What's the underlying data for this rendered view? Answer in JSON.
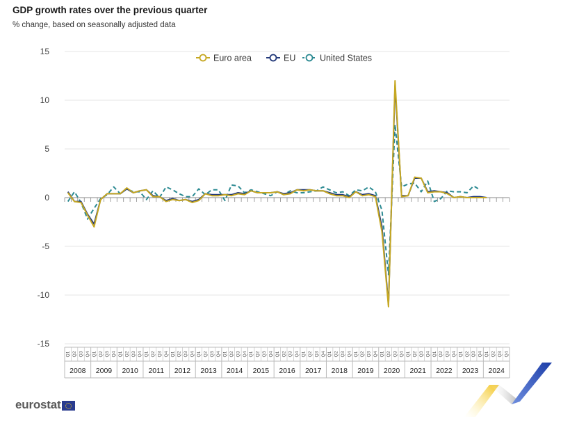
{
  "header": {
    "title": "GDP growth rates over the previous quarter",
    "subtitle": "% change, based on seasonally adjusted data"
  },
  "logo": {
    "text": "eurostat"
  },
  "colors": {
    "euro_area": "#c6a823",
    "eu": "#243a7a",
    "united_states": "#2c8a92",
    "grid": "#e6e6e6",
    "axis": "#888888"
  },
  "chart_data": {
    "type": "line",
    "title": "GDP growth rates over the previous quarter",
    "subtitle": "% change, based on seasonally adjusted data",
    "xlabel": "",
    "ylabel": "",
    "ylim": [
      -15,
      15
    ],
    "yticks": [
      15,
      10,
      5,
      0,
      -5,
      -10,
      -15
    ],
    "grid": true,
    "legend_position": "top-center",
    "years": [
      "2008",
      "2009",
      "2010",
      "2011",
      "2012",
      "2013",
      "2014",
      "2015",
      "2016",
      "2017",
      "2018",
      "2019",
      "2020",
      "2021",
      "2022",
      "2023",
      "2024"
    ],
    "quarter_labels": [
      "Q1",
      "Q2",
      "Q3",
      "Q4"
    ],
    "x_start": "2008Q1",
    "series": [
      {
        "name": "Euro area",
        "style": "solid",
        "values": [
          0.5,
          -0.4,
          -0.5,
          -1.8,
          -3.0,
          -0.2,
          0.4,
          0.4,
          0.4,
          1.0,
          0.5,
          0.7,
          0.8,
          0.1,
          0.1,
          -0.4,
          -0.2,
          -0.3,
          -0.2,
          -0.5,
          -0.3,
          0.4,
          0.2,
          0.2,
          0.3,
          0.2,
          0.4,
          0.3,
          0.7,
          0.5,
          0.5,
          0.5,
          0.6,
          0.3,
          0.4,
          0.8,
          0.7,
          0.8,
          0.7,
          0.7,
          0.4,
          0.2,
          0.2,
          0.0,
          0.6,
          0.2,
          0.3,
          0.1,
          -3.5,
          -11.2,
          12.0,
          0.1,
          0.2,
          2.1,
          2.0,
          0.5,
          0.6,
          0.6,
          0.4,
          0.0,
          0.1,
          0.0,
          0.0,
          0.0,
          0.0,
          null,
          null,
          null
        ]
      },
      {
        "name": "EU",
        "style": "solid",
        "values": [
          0.6,
          -0.4,
          -0.4,
          -1.7,
          -2.7,
          -0.2,
          0.4,
          0.4,
          0.4,
          0.9,
          0.5,
          0.7,
          0.8,
          0.2,
          0.1,
          -0.3,
          -0.1,
          -0.3,
          -0.2,
          -0.4,
          -0.2,
          0.4,
          0.3,
          0.3,
          0.3,
          0.3,
          0.5,
          0.4,
          0.7,
          0.5,
          0.5,
          0.5,
          0.6,
          0.4,
          0.5,
          0.8,
          0.8,
          0.8,
          0.7,
          0.7,
          0.5,
          0.3,
          0.3,
          0.1,
          0.6,
          0.3,
          0.4,
          0.2,
          -3.0,
          -11.0,
          11.5,
          0.2,
          0.2,
          2.0,
          2.0,
          0.6,
          0.7,
          0.6,
          0.5,
          0.0,
          0.1,
          0.0,
          0.1,
          0.1,
          0.0,
          null,
          null,
          null
        ]
      },
      {
        "name": "United States",
        "style": "dashed",
        "values": [
          -0.4,
          0.6,
          -0.5,
          -2.2,
          -1.1,
          -0.1,
          0.3,
          1.1,
          0.4,
          0.9,
          0.6,
          0.6,
          -0.2,
          0.7,
          0.0,
          1.1,
          0.8,
          0.4,
          0.1,
          0.1,
          0.9,
          0.3,
          0.8,
          0.8,
          -0.3,
          1.3,
          1.2,
          0.5,
          0.8,
          0.6,
          0.4,
          0.2,
          0.6,
          0.3,
          0.7,
          0.5,
          0.5,
          0.6,
          0.7,
          1.1,
          0.8,
          0.5,
          0.6,
          0.2,
          0.8,
          0.7,
          1.1,
          0.6,
          -1.3,
          -7.9,
          7.5,
          1.1,
          1.4,
          1.5,
          0.6,
          1.7,
          -0.4,
          -0.1,
          0.7,
          0.6,
          0.6,
          0.5,
          1.2,
          0.8,
          null,
          null,
          null,
          null
        ]
      }
    ]
  }
}
